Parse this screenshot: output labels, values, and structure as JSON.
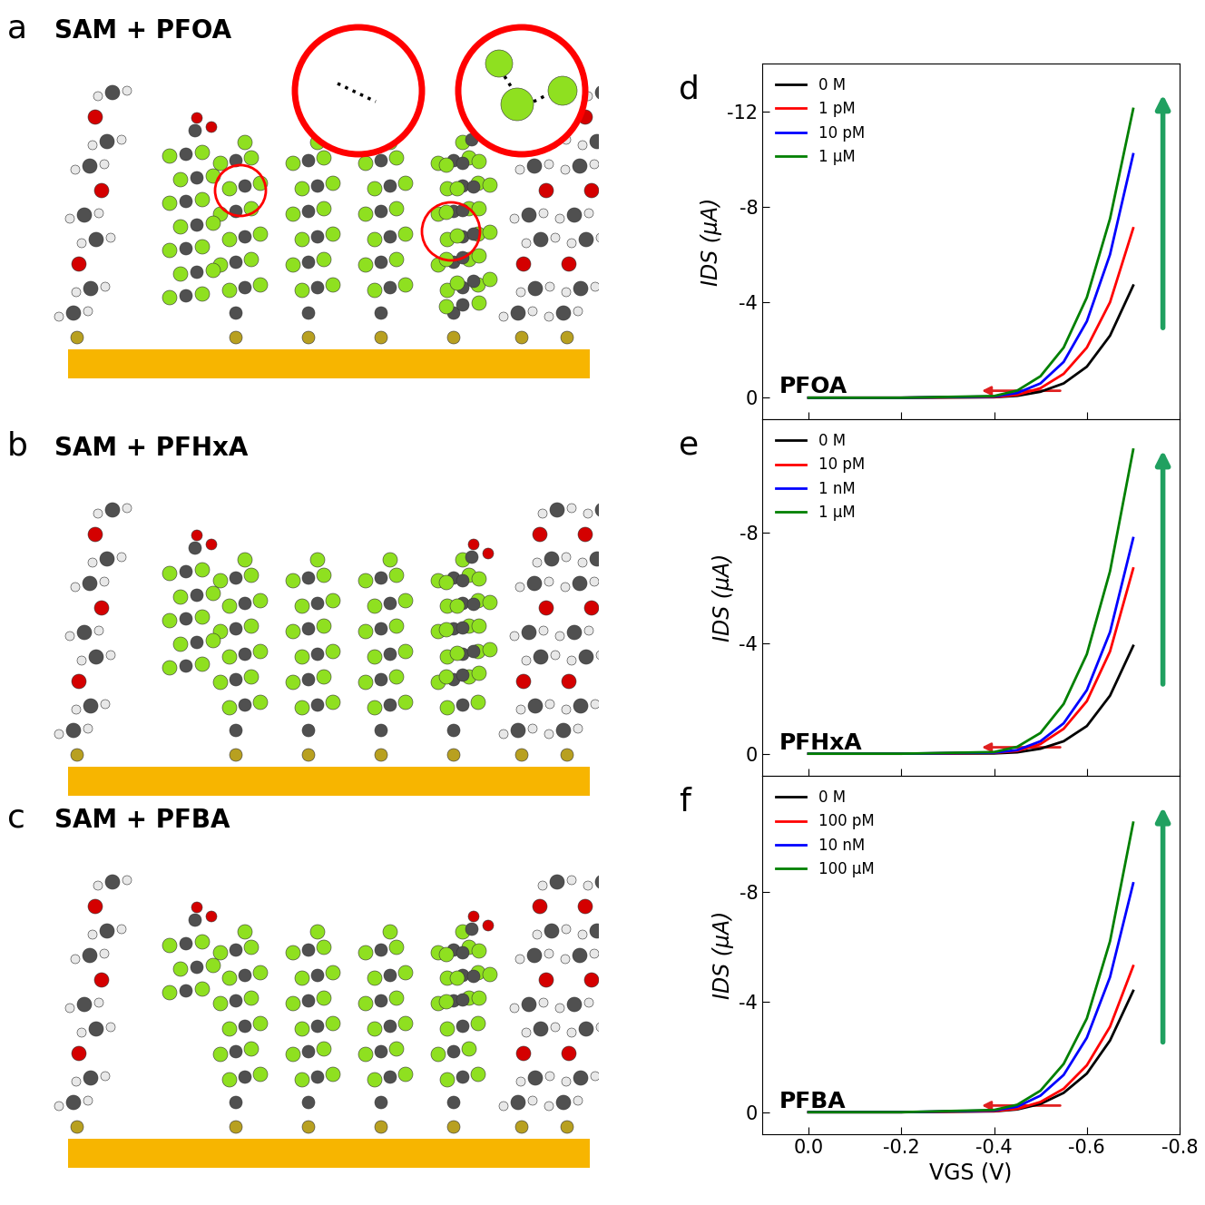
{
  "diagrams": [
    {
      "panel": "a",
      "title": "SAM + PFOA"
    },
    {
      "panel": "b",
      "title": "SAM + PFHxA"
    },
    {
      "panel": "c",
      "title": "SAM + PFBA"
    }
  ],
  "chart_data": [
    {
      "type": "line",
      "panel": "d",
      "annotation": "PFOA",
      "y_label": "IDS (μA)",
      "tick_labels": "y",
      "legend": "upper left",
      "x": [
        0.0,
        -0.2,
        -0.4,
        -0.45,
        -0.5,
        -0.55,
        -0.6,
        -0.65,
        -0.7
      ],
      "xlim": [
        0.1,
        -0.8
      ],
      "xticks": [
        0.0,
        -0.2,
        -0.4,
        -0.6,
        -0.8
      ],
      "ylim": [
        0.9,
        -14.0
      ],
      "yticks": [
        0,
        -4,
        -8,
        -12
      ],
      "series": [
        {
          "name": "0 M",
          "color": "#000000",
          "values": [
            0,
            0,
            -0.02,
            -0.08,
            -0.25,
            -0.6,
            -1.3,
            -2.6,
            -4.7
          ]
        },
        {
          "name": "1 pM",
          "color": "#ff0000",
          "values": [
            0,
            0,
            -0.03,
            -0.12,
            -0.4,
            -1.0,
            -2.1,
            -4.0,
            -7.1
          ]
        },
        {
          "name": "10 pM",
          "color": "#0000ff",
          "values": [
            0,
            0,
            -0.05,
            -0.2,
            -0.6,
            -1.5,
            -3.2,
            -6.0,
            -10.2
          ]
        },
        {
          "name": "1 μM",
          "color": "#008000",
          "values": [
            0,
            0,
            -0.07,
            -0.3,
            -0.9,
            -2.1,
            -4.2,
            -7.5,
            -12.1
          ]
        }
      ]
    },
    {
      "type": "line",
      "panel": "e",
      "annotation": "PFHxA",
      "y_label": "IDS (μA)",
      "tick_labels": "y",
      "legend": "upper left",
      "x": [
        0.0,
        -0.2,
        -0.4,
        -0.45,
        -0.5,
        -0.55,
        -0.6,
        -0.65,
        -0.7
      ],
      "xlim": [
        0.1,
        -0.8
      ],
      "xticks": [
        0.0,
        -0.2,
        -0.4,
        -0.6,
        -0.8
      ],
      "ylim": [
        0.8,
        -12.1
      ],
      "yticks": [
        0,
        -4,
        -8
      ],
      "series": [
        {
          "name": "0 M",
          "color": "#000000",
          "values": [
            0,
            0,
            -0.01,
            -0.05,
            -0.18,
            -0.45,
            -1.0,
            -2.1,
            -3.9
          ]
        },
        {
          "name": "10 pM",
          "color": "#ff0000",
          "values": [
            0,
            0,
            -0.03,
            -0.1,
            -0.35,
            -0.9,
            -1.9,
            -3.7,
            -6.7
          ]
        },
        {
          "name": "1 nM",
          "color": "#0000ff",
          "values": [
            0,
            0,
            -0.04,
            -0.13,
            -0.45,
            -1.1,
            -2.3,
            -4.4,
            -7.8
          ]
        },
        {
          "name": "1 μM",
          "color": "#008000",
          "values": [
            0,
            0,
            -0.06,
            -0.25,
            -0.75,
            -1.8,
            -3.6,
            -6.6,
            -11.0
          ]
        }
      ]
    },
    {
      "type": "line",
      "panel": "f",
      "annotation": "PFBA",
      "x_label": "VGS (V)",
      "y_label": "IDS (μA)",
      "legend": "upper left",
      "x": [
        0.0,
        -0.2,
        -0.4,
        -0.45,
        -0.5,
        -0.55,
        -0.6,
        -0.65,
        -0.7
      ],
      "xlim": [
        0.1,
        -0.8
      ],
      "xticks": [
        0.0,
        -0.2,
        -0.4,
        -0.6,
        -0.8
      ],
      "ylim": [
        0.8,
        -12.2
      ],
      "yticks": [
        0,
        -4,
        -8
      ],
      "series": [
        {
          "name": "0 M",
          "color": "#000000",
          "values": [
            0,
            0,
            -0.03,
            -0.1,
            -0.3,
            -0.7,
            -1.4,
            -2.6,
            -4.4
          ]
        },
        {
          "name": "100 pM",
          "color": "#ff0000",
          "values": [
            0,
            0,
            -0.04,
            -0.12,
            -0.37,
            -0.85,
            -1.7,
            -3.1,
            -5.3
          ]
        },
        {
          "name": "10 nM",
          "color": "#0000ff",
          "values": [
            0,
            0,
            -0.06,
            -0.2,
            -0.6,
            -1.35,
            -2.7,
            -4.9,
            -8.3
          ]
        },
        {
          "name": "100 μM",
          "color": "#008000",
          "values": [
            0,
            0,
            -0.08,
            -0.27,
            -0.78,
            -1.75,
            -3.4,
            -6.2,
            -10.5
          ]
        }
      ]
    }
  ]
}
